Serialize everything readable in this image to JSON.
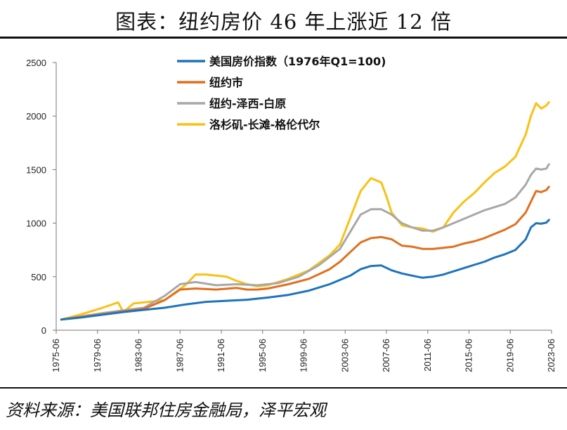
{
  "title": "图表：纽约房价 46 年上涨近 12 倍",
  "source": "资料来源：美国联邦住房金融局，泽平宏观",
  "chart_data": {
    "type": "line",
    "title": "图表：纽约房价 46 年上涨近 12 倍",
    "xlabel": "",
    "ylabel": "",
    "ylim": [
      0,
      2500
    ],
    "yticks": [
      0,
      500,
      1000,
      1500,
      2000,
      2500
    ],
    "xlim": [
      1975.5,
      2023.5
    ],
    "xtick_labels": [
      "1975-06",
      "1979-06",
      "1983-06",
      "1987-06",
      "1991-06",
      "1995-06",
      "1999-06",
      "2003-06",
      "2007-06",
      "2011-06",
      "2015-06",
      "2019-06",
      "2023-06"
    ],
    "xtick_years": [
      1975.5,
      1979.5,
      1983.5,
      1987.5,
      1991.5,
      1995.5,
      1999.5,
      2003.5,
      2007.5,
      2011.5,
      2015.5,
      2019.5,
      2023.5
    ],
    "grid": false,
    "legend_position": "top-center",
    "series": [
      {
        "name": "美国房价指数（1976年Q1=100)",
        "color": "#1f74bb",
        "x": [
          1976,
          1978,
          1980,
          1982,
          1984,
          1986,
          1988,
          1990,
          1992,
          1994,
          1996,
          1998,
          2000,
          2002,
          2004,
          2005,
          2006,
          2007,
          2008,
          2009,
          2010,
          2011,
          2012,
          2013,
          2014,
          2015,
          2016,
          2017,
          2018,
          2019,
          2020,
          2021,
          2021.5,
          2022,
          2022.5,
          2023,
          2023.25
        ],
        "y": [
          100,
          120,
          145,
          170,
          190,
          210,
          240,
          265,
          275,
          285,
          305,
          330,
          370,
          430,
          510,
          570,
          600,
          605,
          560,
          530,
          510,
          490,
          500,
          520,
          550,
          580,
          610,
          640,
          680,
          710,
          750,
          850,
          960,
          1000,
          995,
          1005,
          1030
        ]
      },
      {
        "name": "纽约市",
        "color": "#e07020",
        "x": [
          1976,
          1978,
          1980,
          1982,
          1984,
          1986,
          1987.5,
          1989,
          1991,
          1993,
          1994,
          1995,
          1996,
          1998,
          2000,
          2002,
          2003,
          2004,
          2005,
          2006,
          2007,
          2008,
          2009,
          2010,
          2011,
          2012,
          2013,
          2014,
          2015,
          2016,
          2017,
          2018,
          2019,
          2020,
          2021,
          2021.5,
          2022,
          2022.5,
          2023,
          2023.25
        ],
        "y": [
          100,
          125,
          150,
          175,
          200,
          280,
          380,
          390,
          380,
          395,
          380,
          380,
          390,
          430,
          480,
          570,
          640,
          730,
          820,
          860,
          870,
          850,
          790,
          780,
          760,
          760,
          770,
          780,
          810,
          830,
          860,
          900,
          940,
          990,
          1100,
          1200,
          1300,
          1290,
          1310,
          1340
        ]
      },
      {
        "name": "纽约-泽西-白原",
        "color": "#a8a8a8",
        "x": [
          1976,
          1978,
          1980,
          1982,
          1984,
          1986,
          1987.5,
          1989,
          1991,
          1993,
          1995,
          1997,
          1999,
          2001,
          2003,
          2004,
          2005,
          2006,
          2007,
          2008,
          2009,
          2010,
          2011,
          2012,
          2013,
          2014,
          2015,
          2016,
          2017,
          2018,
          2019,
          2020,
          2021,
          2021.5,
          2022,
          2022.5,
          2023,
          2023.25
        ],
        "y": [
          100,
          130,
          160,
          185,
          210,
          320,
          430,
          450,
          420,
          430,
          420,
          440,
          500,
          610,
          760,
          920,
          1080,
          1130,
          1130,
          1080,
          1000,
          960,
          930,
          930,
          960,
          1000,
          1040,
          1080,
          1120,
          1150,
          1180,
          1240,
          1360,
          1450,
          1510,
          1500,
          1510,
          1550
        ]
      },
      {
        "name": "洛杉矶-长滩-格伦代尔",
        "color": "#fac114",
        "x": [
          1976,
          1978,
          1980,
          1981.5,
          1982,
          1983,
          1984,
          1986,
          1988,
          1989,
          1990,
          1992,
          1993,
          1994,
          1995,
          1996,
          1998,
          2000,
          2002,
          2003,
          2004,
          2005,
          2006,
          2007,
          2007.5,
          2008,
          2009,
          2010,
          2011,
          2012,
          2013,
          2014,
          2015,
          2016,
          2017,
          2018,
          2019,
          2020,
          2021,
          2021.5,
          2022,
          2022.5,
          2023,
          2023.25
        ],
        "y": [
          100,
          150,
          210,
          260,
          170,
          250,
          260,
          280,
          420,
          520,
          520,
          500,
          460,
          430,
          410,
          420,
          480,
          560,
          700,
          800,
          1050,
          1300,
          1420,
          1380,
          1250,
          1100,
          980,
          960,
          950,
          920,
          960,
          1100,
          1200,
          1280,
          1380,
          1470,
          1530,
          1620,
          1830,
          2000,
          2120,
          2070,
          2100,
          2130
        ]
      }
    ]
  }
}
